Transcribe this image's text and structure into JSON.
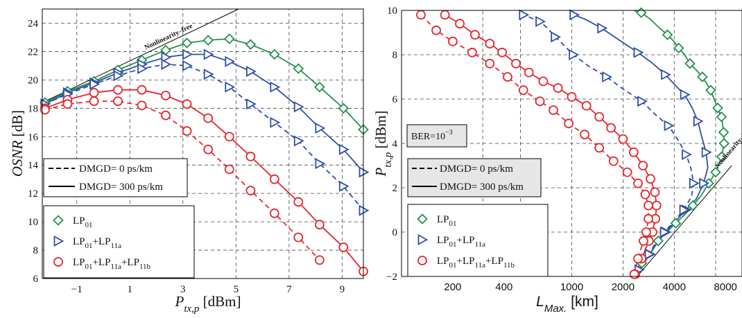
{
  "colors": {
    "lp01": "#22924a",
    "lp01_lp11a": "#2e4ea8",
    "lp01_lp11a_lp11b": "#e5262d",
    "grid": "#444444"
  },
  "chart_data": [
    {
      "type": "line",
      "ylabel": {
        "main": "OSNR",
        "unit": " [dB]"
      },
      "xlabel": {
        "main": "P",
        "sub": "tx,p",
        "unit": " [dBm]"
      },
      "xlim": [
        -2.3,
        9.8
      ],
      "ylim": [
        6,
        25
      ],
      "xticks": [
        -1,
        1,
        3,
        5,
        7,
        9
      ],
      "yticks": [
        6,
        8,
        10,
        12,
        14,
        16,
        18,
        20,
        22,
        24
      ],
      "grid": true,
      "annotation": "Nonlinearity–free",
      "nonlinearity_free_line": {
        "x": [
          -2.3,
          5.1
        ],
        "y": [
          18.4,
          25.0
        ]
      },
      "line_legend": [
        {
          "label": "DMGD= 0 ps/km",
          "style": "dashed"
        },
        {
          "label": "DMGD= 300 ps/km",
          "style": "solid"
        }
      ],
      "series": [
        {
          "key": "lp01",
          "dmgd": 300,
          "style": "solid",
          "marker": "diamond",
          "x": [
            -2.2,
            -1.35,
            -0.35,
            0.55,
            1.45,
            2.35,
            3.15,
            3.95,
            4.75,
            5.55,
            6.45,
            7.35,
            8.15,
            9.05,
            9.8
          ],
          "y": [
            18.4,
            19.2,
            19.9,
            20.7,
            21.4,
            22.1,
            22.6,
            22.8,
            22.9,
            22.5,
            21.8,
            20.8,
            19.5,
            18.0,
            16.5
          ]
        },
        {
          "key": "lp01_lp11a",
          "dmgd": 300,
          "style": "solid",
          "marker": "triangle-right",
          "x": [
            -2.2,
            -1.35,
            -0.35,
            0.55,
            1.45,
            2.35,
            3.15,
            3.95,
            4.75,
            5.55,
            6.45,
            7.35,
            8.15,
            9.05,
            9.8
          ],
          "y": [
            18.3,
            19.1,
            19.8,
            20.5,
            21.1,
            21.6,
            21.8,
            21.8,
            21.3,
            20.6,
            19.5,
            18.1,
            16.6,
            15.1,
            13.5
          ]
        },
        {
          "key": "lp01_lp11a",
          "dmgd": 0,
          "style": "dashed",
          "marker": "triangle-right",
          "x": [
            -2.2,
            -1.35,
            -0.35,
            0.55,
            1.45,
            2.35,
            3.15,
            3.95,
            4.75,
            5.55,
            6.45,
            7.35,
            8.15,
            9.05,
            9.8
          ],
          "y": [
            18.3,
            19.0,
            19.7,
            20.3,
            20.8,
            21.1,
            21.0,
            20.4,
            19.5,
            18.3,
            17.0,
            15.7,
            14.1,
            12.5,
            10.8
          ]
        },
        {
          "key": "lp01_lp11a_lp11b",
          "dmgd": 300,
          "style": "solid",
          "marker": "circle",
          "x": [
            -2.2,
            -1.35,
            -0.35,
            0.55,
            1.45,
            2.35,
            3.15,
            3.95,
            4.75,
            5.55,
            6.45,
            7.35,
            8.15,
            9.05,
            9.8
          ],
          "y": [
            18.0,
            18.6,
            19.1,
            19.3,
            19.3,
            18.9,
            18.3,
            17.3,
            16.0,
            14.6,
            13.0,
            11.4,
            9.8,
            8.2,
            6.5
          ]
        },
        {
          "key": "lp01_lp11a_lp11b",
          "dmgd": 0,
          "style": "dashed",
          "marker": "circle",
          "x": [
            -2.2,
            -1.35,
            -0.35,
            0.55,
            1.45,
            2.35,
            3.15,
            3.95,
            4.75,
            5.55,
            6.45,
            7.35,
            8.15
          ],
          "y": [
            17.9,
            18.3,
            18.5,
            18.5,
            18.2,
            17.5,
            16.4,
            15.1,
            13.7,
            12.2,
            10.6,
            8.9,
            7.3
          ]
        }
      ]
    },
    {
      "type": "line",
      "ylabel": {
        "main": "P",
        "sub": "tx,p",
        "unit": " [dBm]"
      },
      "xlabel": {
        "main": "L",
        "sub": "Max.",
        "unit": " [km]"
      },
      "xscale": "log",
      "xlim": [
        100,
        10000
      ],
      "ylim": [
        -2,
        10
      ],
      "xticks": [
        200,
        400,
        1000,
        2000,
        4000,
        8000
      ],
      "xticklabels": [
        "200",
        "400",
        "1000",
        "2000",
        "4000",
        "8000"
      ],
      "ygrid": [
        -2,
        0,
        2,
        4,
        6,
        8,
        10
      ],
      "xgrid": [
        300,
        500,
        1000,
        2000,
        4000,
        7000
      ],
      "yticks": [
        -2,
        0,
        2,
        4,
        6,
        8,
        10
      ],
      "grid": true,
      "ber_label": {
        "base": "BER=10",
        "exp": "−3"
      },
      "annotation": "Nonlinearity–free",
      "nonlinearity_free_line": {
        "x": [
          2420,
          8700
        ],
        "y": [
          -2.0,
          3.0
        ]
      },
      "line_legend": [
        {
          "label": "DMGD= 0 ps/km",
          "style": "dashed"
        },
        {
          "label": "DMGD= 300 ps/km",
          "style": "solid"
        }
      ],
      "series": [
        {
          "key": "lp01",
          "dmgd": 300,
          "style": "solid",
          "marker": "diamond",
          "x": [
            2580,
            2880,
            3220,
            3600,
            4080,
            4620,
            5150,
            5700,
            6380,
            7000,
            7600,
            7850,
            7800,
            7580,
            7200,
            6850,
            6550,
            6200,
            5850,
            5400,
            4950,
            4600,
            4250,
            3980,
            3650,
            3280,
            2900,
            2560,
            2320
          ],
          "y": [
            -1.4,
            -1.0,
            -0.4,
            0.0,
            0.4,
            0.8,
            1.2,
            1.6,
            2.2,
            2.7,
            3.4,
            4.0,
            4.5,
            5.2,
            5.6,
            6.0,
            6.4,
            6.7,
            7.0,
            7.3,
            7.6,
            8.0,
            8.3,
            8.6,
            8.9,
            9.2,
            9.6,
            9.9,
            10.0
          ],
          "markers": [
            0,
            2,
            4,
            6,
            8,
            9,
            10,
            11,
            12,
            13,
            14,
            16,
            18,
            20,
            22,
            24,
            27
          ]
        },
        {
          "key": "lp01_lp11a",
          "dmgd": 300,
          "style": "solid",
          "marker": "triangle-right",
          "x": [
            2480,
            2650,
            2880,
            3150,
            3560,
            4080,
            4680,
            5400,
            5950,
            6300,
            6150,
            5800,
            5500,
            5100,
            4600,
            4080,
            3550,
            3000,
            2450,
            1950,
            1500,
            1200,
            1030
          ],
          "y": [
            -1.7,
            -1.4,
            -1.0,
            -0.5,
            0.0,
            0.5,
            1.0,
            1.5,
            2.2,
            2.9,
            3.6,
            4.3,
            5.0,
            5.6,
            6.2,
            6.6,
            7.1,
            7.6,
            8.1,
            8.6,
            9.2,
            9.6,
            9.8
          ],
          "markers": [
            0,
            2,
            4,
            6,
            8,
            10,
            12,
            14,
            16,
            18,
            20,
            22
          ]
        },
        {
          "key": "lp01_lp11a",
          "dmgd": 0,
          "style": "dashed",
          "marker": "triangle-right",
          "x": [
            2480,
            2650,
            2850,
            3100,
            3500,
            4000,
            4550,
            5050,
            5200,
            5000,
            4700,
            4250,
            3700,
            3100,
            2580,
            2050,
            1600,
            1250,
            1020,
            880,
            800,
            720,
            650,
            560,
            520,
            490
          ],
          "y": [
            -1.7,
            -1.4,
            -1.0,
            -0.5,
            0.0,
            0.5,
            1.0,
            1.6,
            2.2,
            2.9,
            3.5,
            4.1,
            4.8,
            5.3,
            5.9,
            6.4,
            7.0,
            7.5,
            8.0,
            8.5,
            8.8,
            9.2,
            9.5,
            9.7,
            9.8,
            9.9
          ],
          "markers": [
            0,
            2,
            4,
            6,
            8,
            10,
            12,
            14,
            16,
            18,
            20,
            22,
            24
          ]
        },
        {
          "key": "lp01_lp11a_lp11b",
          "dmgd": 300,
          "style": "solid",
          "marker": "circle",
          "x": [
            2360,
            2460,
            2570,
            2700,
            2840,
            2980,
            3100,
            3150,
            3080,
            2900,
            2620,
            2310,
            2000,
            1700,
            1450,
            1220,
            1000,
            830,
            680,
            560,
            470,
            390,
            330,
            270,
            220,
            180
          ],
          "y": [
            -1.9,
            -1.6,
            -1.2,
            -0.8,
            -0.4,
            0.0,
            0.6,
            1.2,
            1.8,
            2.4,
            3.0,
            3.6,
            4.2,
            4.7,
            5.2,
            5.7,
            6.1,
            6.5,
            6.8,
            7.2,
            7.6,
            8.1,
            8.5,
            8.9,
            9.4,
            9.8
          ],
          "markers": [
            0,
            2,
            4,
            5,
            6,
            7,
            8,
            9,
            10,
            11,
            12,
            13,
            14,
            15,
            16,
            17,
            18,
            19,
            20,
            21,
            22,
            23,
            24,
            25
          ]
        },
        {
          "key": "lp01_lp11a_lp11b",
          "dmgd": 0,
          "style": "dashed",
          "marker": "circle",
          "x": [
            2330,
            2380,
            2450,
            2540,
            2640,
            2740,
            2820,
            2820,
            2700,
            2450,
            2120,
            1760,
            1450,
            1190,
            960,
            780,
            650,
            520,
            420,
            330,
            260,
            200,
            160,
            130
          ],
          "y": [
            -1.9,
            -1.6,
            -1.2,
            -0.8,
            -0.4,
            0.0,
            0.6,
            1.2,
            1.7,
            2.2,
            2.7,
            3.2,
            3.8,
            4.4,
            4.9,
            5.5,
            5.9,
            6.4,
            7.0,
            7.6,
            8.1,
            8.6,
            9.1,
            9.8
          ],
          "markers": [
            0,
            2,
            4,
            5,
            6,
            7,
            8,
            9,
            10,
            11,
            12,
            13,
            14,
            15,
            16,
            17,
            18,
            19,
            20,
            21,
            22,
            23
          ]
        }
      ]
    }
  ],
  "marker_legend": [
    {
      "key": "lp01",
      "marker": "diamond",
      "label": [
        [
          "LP",
          "01"
        ]
      ]
    },
    {
      "key": "lp01_lp11a",
      "marker": "triangle-right",
      "label": [
        [
          "LP",
          "01"
        ],
        [
          "+LP",
          "11a"
        ]
      ]
    },
    {
      "key": "lp01_lp11a_lp11b",
      "marker": "circle",
      "label": [
        [
          "LP",
          "01"
        ],
        [
          "+LP",
          "11a"
        ],
        [
          "+LP",
          "11b"
        ]
      ]
    }
  ]
}
